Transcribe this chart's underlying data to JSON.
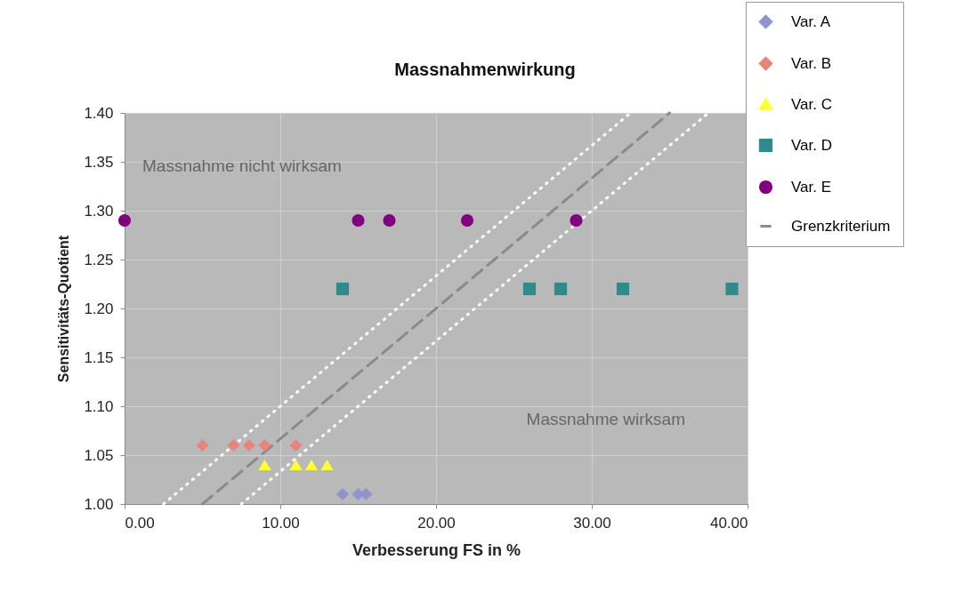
{
  "chart_data": {
    "type": "scatter",
    "title": "Massnahmenwirkung",
    "xlabel": "Verbesserung FS in %",
    "ylabel": "Sensitivitäts-Quotient",
    "xlim": [
      0,
      40
    ],
    "xticks": [
      {
        "value": 0,
        "label": "0.00"
      },
      {
        "value": 10,
        "label": "10.00"
      },
      {
        "value": 20,
        "label": "20.00"
      },
      {
        "value": 30,
        "label": "30.00"
      },
      {
        "value": 40,
        "label": "40.00"
      }
    ],
    "ylim": [
      1.0,
      1.4
    ],
    "yticks": [
      {
        "value": 1.0,
        "label": "1.00"
      },
      {
        "value": 1.05,
        "label": "1.05"
      },
      {
        "value": 1.1,
        "label": "1.10"
      },
      {
        "value": 1.15,
        "label": "1.15"
      },
      {
        "value": 1.2,
        "label": "1.20"
      },
      {
        "value": 1.25,
        "label": "1.25"
      },
      {
        "value": 1.3,
        "label": "1.30"
      },
      {
        "value": 1.35,
        "label": "1.35"
      },
      {
        "value": 1.4,
        "label": "1.40"
      }
    ],
    "grid": true,
    "legend": "top right",
    "annotations": [
      "Massnahme nicht wirksam",
      "Massnahme wirksam"
    ],
    "series": [
      {
        "name": "Var. A",
        "color": "#8f94d0",
        "marker": "diamond",
        "x": [
          14,
          15,
          15.5
        ],
        "values": [
          1.01,
          1.01,
          1.01
        ]
      },
      {
        "name": "Var. B",
        "color": "#e8857a",
        "marker": "diamond",
        "x": [
          5,
          7,
          8,
          9,
          11
        ],
        "values": [
          1.06,
          1.06,
          1.06,
          1.06,
          1.06
        ]
      },
      {
        "name": "Var. C",
        "color": "#ffff33",
        "marker": "triangle",
        "x": [
          9,
          11,
          12,
          13
        ],
        "values": [
          1.04,
          1.04,
          1.04,
          1.04
        ]
      },
      {
        "name": "Var. D",
        "color": "#2e8b8b",
        "marker": "square",
        "x": [
          14,
          26,
          28,
          32,
          39
        ],
        "values": [
          1.22,
          1.22,
          1.22,
          1.22,
          1.22
        ]
      },
      {
        "name": "Var. E",
        "color": "#800080",
        "marker": "circle",
        "x": [
          0,
          15,
          17,
          22,
          29
        ],
        "values": [
          1.29,
          1.29,
          1.29,
          1.29,
          1.29
        ]
      },
      {
        "name": "Grenzkriterium",
        "type": "line",
        "color": "#8a8a8a",
        "line_style": "dashed",
        "marker": "none",
        "x": [
          5,
          35
        ],
        "values": [
          1.0,
          1.4
        ]
      },
      {
        "type": "line",
        "color": "#ffffff",
        "line_style": "dotted",
        "marker": "none",
        "x": [
          2.5,
          32.5
        ],
        "values": [
          1.0,
          1.4
        ]
      },
      {
        "type": "line",
        "color": "#ffffff",
        "line_style": "dotted",
        "marker": "none",
        "x": [
          7.5,
          37.5
        ],
        "values": [
          1.0,
          1.4
        ]
      }
    ]
  }
}
